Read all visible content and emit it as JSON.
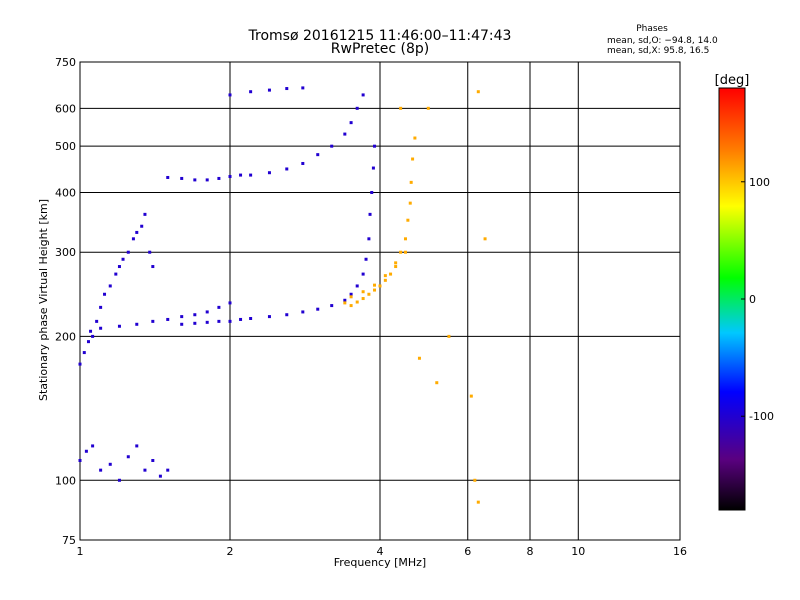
{
  "chart_data": {
    "type": "scatter",
    "title": "Tromsø 20161215 11:46:00–11:47:43",
    "subtitle": "RwPretec (8p)",
    "xlabel": "Frequency [MHz]",
    "ylabel": "Stationary phase Virtual Height [km]",
    "x_scale": "log",
    "y_scale": "log",
    "xlim": [
      1,
      16
    ],
    "ylim": [
      75,
      750
    ],
    "x_ticks": [
      1,
      2,
      4,
      6,
      8,
      10,
      16
    ],
    "y_ticks": [
      75,
      100,
      200,
      300,
      400,
      500,
      600,
      750
    ],
    "grid": true,
    "stats": {
      "title": "Phases",
      "line_o": "mean, sd,O: −94.8, 14.0",
      "line_x": "mean, sd,X:  95.8, 16.5"
    },
    "colorbar": {
      "label": "[deg]",
      "ticks": [
        100,
        0,
        -100
      ],
      "range": [
        -180,
        180
      ],
      "colormap": "black-purple-blue-cyan-green-yellow-red"
    },
    "series": [
      {
        "mode": "O",
        "phase_deg": -100,
        "points": [
          [
            1.0,
            175
          ],
          [
            1.02,
            185
          ],
          [
            1.04,
            195
          ],
          [
            1.06,
            200
          ],
          [
            1.08,
            215
          ],
          [
            1.1,
            230
          ],
          [
            1.12,
            245
          ],
          [
            1.15,
            255
          ],
          [
            1.18,
            270
          ],
          [
            1.2,
            280
          ],
          [
            1.22,
            290
          ],
          [
            1.25,
            300
          ],
          [
            1.28,
            320
          ],
          [
            1.3,
            330
          ],
          [
            1.33,
            340
          ],
          [
            1.35,
            360
          ],
          [
            1.38,
            300
          ],
          [
            1.4,
            280
          ],
          [
            1.05,
            205
          ],
          [
            1.1,
            208
          ],
          [
            1.2,
            210
          ],
          [
            1.3,
            212
          ],
          [
            1.4,
            215
          ],
          [
            1.5,
            217
          ],
          [
            1.6,
            220
          ],
          [
            1.7,
            222
          ],
          [
            1.8,
            225
          ],
          [
            1.9,
            230
          ],
          [
            2.0,
            235
          ],
          [
            1.6,
            212
          ],
          [
            1.7,
            213
          ],
          [
            1.8,
            214
          ],
          [
            1.9,
            215
          ],
          [
            2.0,
            215
          ],
          [
            2.1,
            217
          ],
          [
            2.2,
            218
          ],
          [
            2.4,
            220
          ],
          [
            2.6,
            222
          ],
          [
            2.8,
            225
          ],
          [
            3.0,
            228
          ],
          [
            3.2,
            232
          ],
          [
            3.4,
            238
          ],
          [
            3.5,
            245
          ],
          [
            3.6,
            255
          ],
          [
            3.7,
            270
          ],
          [
            3.75,
            290
          ],
          [
            3.8,
            320
          ],
          [
            3.82,
            360
          ],
          [
            3.85,
            400
          ],
          [
            3.88,
            450
          ],
          [
            3.9,
            500
          ],
          [
            1.5,
            430
          ],
          [
            1.6,
            428
          ],
          [
            1.7,
            425
          ],
          [
            1.8,
            425
          ],
          [
            1.9,
            428
          ],
          [
            2.0,
            432
          ],
          [
            2.1,
            435
          ],
          [
            2.2,
            435
          ],
          [
            2.4,
            440
          ],
          [
            2.6,
            448
          ],
          [
            2.8,
            460
          ],
          [
            3.0,
            480
          ],
          [
            3.2,
            500
          ],
          [
            3.4,
            530
          ],
          [
            3.5,
            560
          ],
          [
            3.6,
            600
          ],
          [
            3.7,
            640
          ],
          [
            1.0,
            110
          ],
          [
            1.03,
            115
          ],
          [
            1.06,
            118
          ],
          [
            1.1,
            105
          ],
          [
            1.15,
            108
          ],
          [
            1.2,
            100
          ],
          [
            1.25,
            112
          ],
          [
            1.3,
            118
          ],
          [
            1.35,
            105
          ],
          [
            1.4,
            110
          ],
          [
            1.45,
            102
          ],
          [
            1.5,
            105
          ],
          [
            2.0,
            640
          ],
          [
            2.2,
            650
          ],
          [
            2.4,
            655
          ],
          [
            2.6,
            660
          ],
          [
            2.8,
            662
          ]
        ]
      },
      {
        "mode": "X",
        "phase_deg": 110,
        "points": [
          [
            3.4,
            235
          ],
          [
            3.5,
            232
          ],
          [
            3.6,
            236
          ],
          [
            3.7,
            240
          ],
          [
            3.8,
            245
          ],
          [
            3.9,
            250
          ],
          [
            4.0,
            255
          ],
          [
            4.1,
            262
          ],
          [
            4.2,
            270
          ],
          [
            4.3,
            285
          ],
          [
            4.4,
            300
          ],
          [
            4.5,
            320
          ],
          [
            4.55,
            350
          ],
          [
            4.6,
            380
          ],
          [
            4.62,
            420
          ],
          [
            4.65,
            470
          ],
          [
            4.7,
            520
          ],
          [
            3.5,
            242
          ],
          [
            3.7,
            248
          ],
          [
            3.9,
            256
          ],
          [
            4.1,
            268
          ],
          [
            4.3,
            280
          ],
          [
            4.5,
            300
          ],
          [
            5.5,
            200
          ],
          [
            6.2,
            100
          ],
          [
            6.3,
            90
          ],
          [
            4.8,
            180
          ],
          [
            5.2,
            160
          ],
          [
            4.4,
            600
          ],
          [
            5.0,
            600
          ],
          [
            6.3,
            650
          ],
          [
            6.5,
            320
          ],
          [
            6.1,
            150
          ]
        ]
      }
    ]
  }
}
